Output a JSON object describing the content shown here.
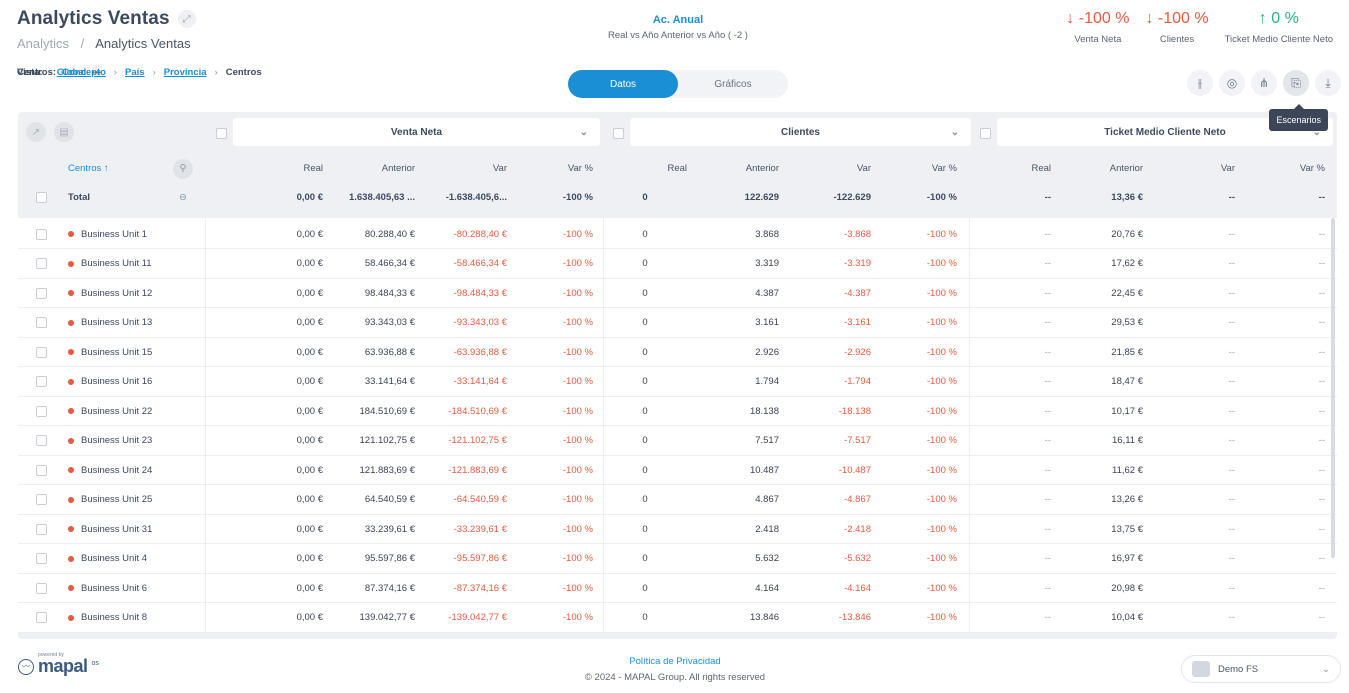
{
  "header": {
    "title": "Analytics Ventas",
    "breadcrumb": [
      "Analytics",
      "Analytics Ventas"
    ]
  },
  "period": {
    "title": "Ac. Anual",
    "subtitle": "Real vs Año Anterior vs Año ( -2 )"
  },
  "kpis": [
    {
      "value": "↓ -100 %",
      "label": "Venta Neta",
      "tone": "negative"
    },
    {
      "value": "↓ -100 %",
      "label": "Clientes",
      "tone": "negative"
    },
    {
      "value": "↑ 0 %",
      "label": "Ticket Medio Cliente Neto",
      "tone": "positive"
    }
  ],
  "vista": {
    "label": "Vista:",
    "value": "Global",
    "centros_label": "Centros:",
    "path": [
      "Concepto",
      "País",
      "Provincia"
    ],
    "current": "Centros"
  },
  "view_toggle": {
    "datos": "Datos",
    "graficos": "Gráficos"
  },
  "tools": [
    "filters-icon",
    "location-icon",
    "hierarchy-icon",
    "scenarios-icon",
    "download-icon"
  ],
  "tooltip": "Escenarios",
  "table": {
    "groups": [
      "Venta Neta",
      "Clientes",
      "Ticket Medio Cliente Neto"
    ],
    "centros_header": "Centros ↑",
    "sub_headers": [
      "Real",
      "Anterior",
      "Var",
      "Var %"
    ],
    "total": {
      "label": "Total",
      "vn": [
        "0,00 €",
        "1.638.405,63 ...",
        "-1.638.405,6...",
        "-100 %"
      ],
      "cl": [
        "0",
        "122.629",
        "-122.629",
        "-100 %"
      ],
      "tm": [
        "--",
        "13,36 €",
        "--",
        "--"
      ]
    },
    "rows": [
      {
        "name": "Business Unit 1",
        "vn": [
          "0,00 €",
          "80.288,40 €",
          "-80.288,40 €",
          "-100 %"
        ],
        "cl": [
          "0",
          "3.868",
          "-3.868",
          "-100 %"
        ],
        "tm": [
          "--",
          "20,76 €",
          "--",
          "--"
        ]
      },
      {
        "name": "Business Unit 11",
        "vn": [
          "0,00 €",
          "58.466,34 €",
          "-58.466,34 €",
          "-100 %"
        ],
        "cl": [
          "0",
          "3.319",
          "-3.319",
          "-100 %"
        ],
        "tm": [
          "--",
          "17,62 €",
          "--",
          "--"
        ]
      },
      {
        "name": "Business Unit 12",
        "vn": [
          "0,00 €",
          "98.484,33 €",
          "-98.484,33 €",
          "-100 %"
        ],
        "cl": [
          "0",
          "4.387",
          "-4.387",
          "-100 %"
        ],
        "tm": [
          "--",
          "22,45 €",
          "--",
          "--"
        ]
      },
      {
        "name": "Business Unit 13",
        "vn": [
          "0,00 €",
          "93.343,03 €",
          "-93.343,03 €",
          "-100 %"
        ],
        "cl": [
          "0",
          "3.161",
          "-3.161",
          "-100 %"
        ],
        "tm": [
          "--",
          "29,53 €",
          "--",
          "--"
        ]
      },
      {
        "name": "Business Unit 15",
        "vn": [
          "0,00 €",
          "63.936,88 €",
          "-63.936,88 €",
          "-100 %"
        ],
        "cl": [
          "0",
          "2.926",
          "-2.926",
          "-100 %"
        ],
        "tm": [
          "--",
          "21,85 €",
          "--",
          "--"
        ]
      },
      {
        "name": "Business Unit 16",
        "vn": [
          "0,00 €",
          "33.141,64 €",
          "-33.141,64 €",
          "-100 %"
        ],
        "cl": [
          "0",
          "1.794",
          "-1.794",
          "-100 %"
        ],
        "tm": [
          "--",
          "18,47 €",
          "--",
          "--"
        ]
      },
      {
        "name": "Business Unit 22",
        "vn": [
          "0,00 €",
          "184.510,69 €",
          "-184.510,69 €",
          "-100 %"
        ],
        "cl": [
          "0",
          "18.138",
          "-18.138",
          "-100 %"
        ],
        "tm": [
          "--",
          "10,17 €",
          "--",
          "--"
        ]
      },
      {
        "name": "Business Unit 23",
        "vn": [
          "0,00 €",
          "121.102,75 €",
          "-121.102,75 €",
          "-100 %"
        ],
        "cl": [
          "0",
          "7.517",
          "-7.517",
          "-100 %"
        ],
        "tm": [
          "--",
          "16,11 €",
          "--",
          "--"
        ]
      },
      {
        "name": "Business Unit 24",
        "vn": [
          "0,00 €",
          "121.883,69 €",
          "-121.883,69 €",
          "-100 %"
        ],
        "cl": [
          "0",
          "10.487",
          "-10.487",
          "-100 %"
        ],
        "tm": [
          "--",
          "11,62 €",
          "--",
          "--"
        ]
      },
      {
        "name": "Business Unit 25",
        "vn": [
          "0,00 €",
          "64.540,59 €",
          "-64.540,59 €",
          "-100 %"
        ],
        "cl": [
          "0",
          "4.867",
          "-4.867",
          "-100 %"
        ],
        "tm": [
          "--",
          "13,26 €",
          "--",
          "--"
        ]
      },
      {
        "name": "Business Unit 31",
        "vn": [
          "0,00 €",
          "33.239,61 €",
          "-33.239,61 €",
          "-100 %"
        ],
        "cl": [
          "0",
          "2.418",
          "-2.418",
          "-100 %"
        ],
        "tm": [
          "--",
          "13,75 €",
          "--",
          "--"
        ]
      },
      {
        "name": "Business Unit 4",
        "vn": [
          "0,00 €",
          "95.597,86 €",
          "-95.597,86 €",
          "-100 %"
        ],
        "cl": [
          "0",
          "5.632",
          "-5.632",
          "-100 %"
        ],
        "tm": [
          "--",
          "16,97 €",
          "--",
          "--"
        ]
      },
      {
        "name": "Business Unit 6",
        "vn": [
          "0,00 €",
          "87.374,16 €",
          "-87.374,16 €",
          "-100 %"
        ],
        "cl": [
          "0",
          "4.164",
          "-4.164",
          "-100 %"
        ],
        "tm": [
          "--",
          "20,98 €",
          "--",
          "--"
        ]
      },
      {
        "name": "Business Unit 8",
        "vn": [
          "0,00 €",
          "139.042,77 €",
          "-139.042,77 €",
          "-100 %"
        ],
        "cl": [
          "0",
          "13.846",
          "-13.846",
          "-100 %"
        ],
        "tm": [
          "--",
          "10,04 €",
          "--",
          "--"
        ]
      }
    ]
  },
  "footer": {
    "privacy": "Política de Privacidad",
    "copyright": "© 2024 - MAPAL Group. All rights reserved",
    "powered_by": "powered by",
    "brand": "mapal",
    "brand_suffix": "os",
    "user": "Demo FS"
  },
  "colors": {
    "accent": "#1a8fd6",
    "negative": "#e85a3e",
    "positive": "#26b38a"
  }
}
